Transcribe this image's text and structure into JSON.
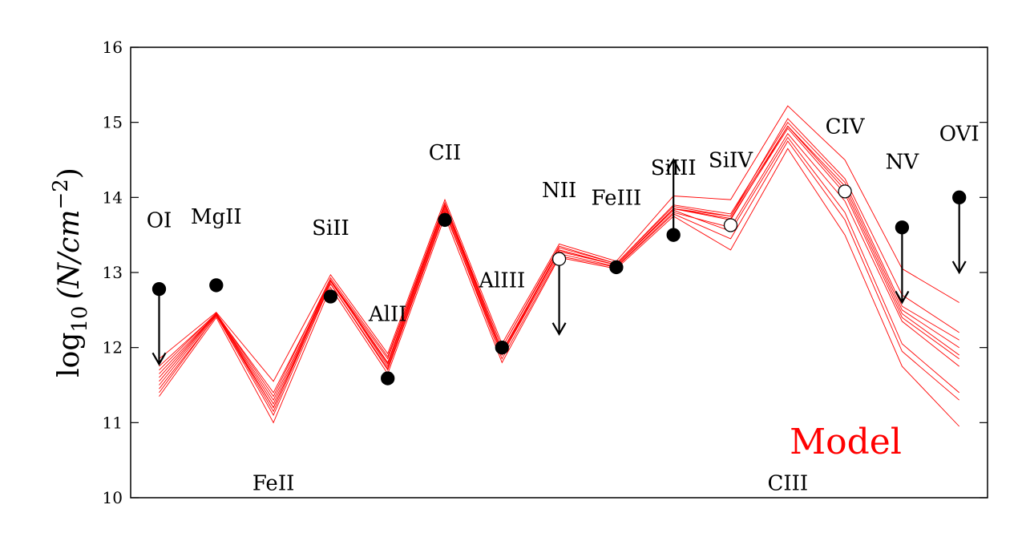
{
  "chart_data": {
    "type": "line",
    "ylabel": {
      "prefix": "log",
      "sub": "10",
      "main": "(N/cm",
      "sup": "−2",
      "close": ")"
    },
    "ylim": [
      10,
      16
    ],
    "yticks": [
      10,
      11,
      12,
      13,
      14,
      15,
      16
    ],
    "categories": [
      "OI",
      "MgII",
      "FeII",
      "SiII",
      "AlII",
      "CII",
      "AlIII",
      "NII",
      "FeIII",
      "SiIII",
      "SiIV",
      "CIII",
      "CIV",
      "NV",
      "OVI"
    ],
    "label_y": [
      13.7,
      13.75,
      10.2,
      13.6,
      12.45,
      14.6,
      12.9,
      14.1,
      14.0,
      14.4,
      14.5,
      10.2,
      14.95,
      14.48,
      14.85
    ],
    "legend": {
      "text": "Model",
      "color": "#ff0000"
    },
    "model_color": "#ff0000",
    "model_series": [
      [
        11.55,
        12.45,
        11.25,
        12.9,
        11.8,
        13.9,
        11.95,
        13.3,
        13.1,
        13.85,
        13.7,
        14.95,
        14.1,
        12.45,
        11.9
      ],
      [
        11.65,
        12.45,
        11.3,
        12.9,
        11.75,
        13.85,
        11.9,
        13.3,
        13.1,
        13.85,
        13.75,
        14.95,
        14.15,
        12.5,
        12.0
      ],
      [
        11.75,
        12.45,
        11.4,
        12.9,
        11.85,
        13.9,
        12.0,
        13.35,
        13.12,
        13.9,
        13.78,
        15.0,
        14.2,
        12.55,
        12.1
      ],
      [
        11.45,
        12.42,
        11.2,
        12.85,
        11.7,
        13.8,
        11.9,
        13.25,
        13.08,
        13.8,
        13.6,
        14.85,
        13.95,
        12.35,
        11.75
      ],
      [
        11.35,
        12.4,
        11.0,
        12.8,
        11.65,
        13.75,
        11.8,
        13.2,
        13.05,
        13.75,
        13.3,
        14.65,
        13.5,
        11.75,
        10.95
      ],
      [
        11.85,
        12.47,
        11.55,
        12.97,
        11.92,
        13.97,
        12.05,
        13.38,
        13.15,
        14.02,
        13.97,
        15.22,
        14.5,
        13.05,
        12.6
      ],
      [
        11.6,
        12.45,
        11.2,
        12.9,
        11.8,
        13.9,
        11.95,
        13.3,
        13.1,
        13.85,
        13.72,
        14.92,
        14.05,
        12.4,
        11.85
      ],
      [
        11.5,
        12.44,
        11.15,
        12.88,
        11.78,
        13.88,
        11.93,
        13.28,
        13.1,
        13.83,
        13.55,
        14.8,
        13.8,
        12.05,
        11.4
      ],
      [
        11.7,
        12.46,
        11.35,
        12.93,
        11.88,
        13.93,
        12.0,
        13.33,
        13.12,
        13.88,
        13.75,
        15.05,
        14.25,
        12.7,
        12.2
      ],
      [
        11.4,
        12.43,
        11.1,
        12.85,
        11.72,
        13.82,
        11.85,
        13.22,
        13.07,
        13.78,
        13.45,
        14.75,
        13.7,
        11.95,
        11.3
      ]
    ],
    "observations": [
      {
        "ion": "OI",
        "value": 12.78,
        "filled": true,
        "arrow": "down"
      },
      {
        "ion": "MgII",
        "value": 12.83,
        "filled": true,
        "arrow": ""
      },
      {
        "ion": "SiII",
        "value": 12.68,
        "filled": true,
        "arrow": ""
      },
      {
        "ion": "AlII",
        "value": 11.59,
        "filled": true,
        "arrow": ""
      },
      {
        "ion": "CII",
        "value": 13.7,
        "filled": true,
        "arrow": ""
      },
      {
        "ion": "AlIII",
        "value": 12.0,
        "filled": true,
        "arrow": ""
      },
      {
        "ion": "NII",
        "value": 13.18,
        "filled": false,
        "arrow": "down"
      },
      {
        "ion": "FeIII",
        "value": 13.07,
        "filled": true,
        "arrow": ""
      },
      {
        "ion": "SiIII",
        "value": 13.5,
        "filled": true,
        "arrow": "up"
      },
      {
        "ion": "SiIV",
        "value": 13.63,
        "filled": false,
        "arrow": ""
      },
      {
        "ion": "CIV",
        "value": 14.08,
        "filled": false,
        "arrow": ""
      },
      {
        "ion": "NV",
        "value": 13.6,
        "filled": true,
        "arrow": "down"
      },
      {
        "ion": "OVI",
        "value": 14.0,
        "filled": true,
        "arrow": "down"
      }
    ]
  }
}
